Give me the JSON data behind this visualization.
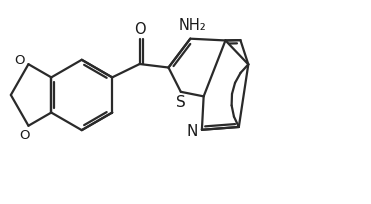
{
  "background": "#ffffff",
  "line_color": "#2a2a2a",
  "line_width": 1.6,
  "text_color": "#1a1a1a",
  "figsize": [
    3.71,
    2.04
  ],
  "dpi": 100,
  "xlim": [
    0,
    10.5
  ],
  "ylim": [
    0,
    5.8
  ]
}
